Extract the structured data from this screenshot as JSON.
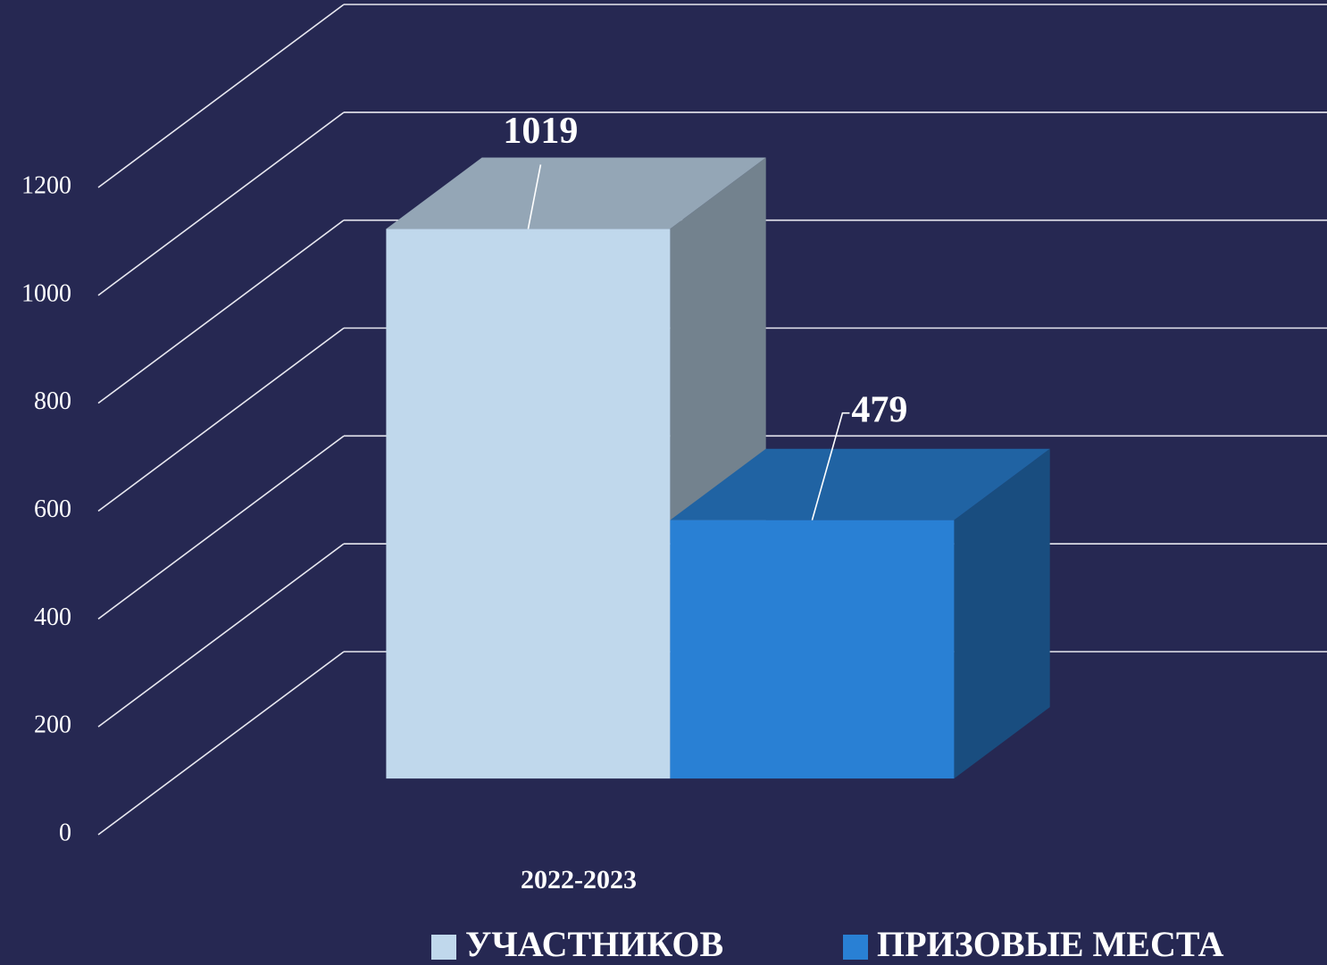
{
  "chart_data": {
    "type": "bar3d",
    "categories": [
      "2022-2023"
    ],
    "series": [
      {
        "name": "УЧАСТНИКОВ",
        "color": "#c0d8ec",
        "values": [
          1019
        ]
      },
      {
        "name": "ПРИЗОВЫЕ МЕСТА",
        "color": "#2980d4",
        "values": [
          479
        ]
      }
    ],
    "ylim": [
      0,
      1200
    ],
    "yticks": [
      0,
      200,
      400,
      600,
      800,
      1000,
      1200
    ],
    "grid": true
  }
}
